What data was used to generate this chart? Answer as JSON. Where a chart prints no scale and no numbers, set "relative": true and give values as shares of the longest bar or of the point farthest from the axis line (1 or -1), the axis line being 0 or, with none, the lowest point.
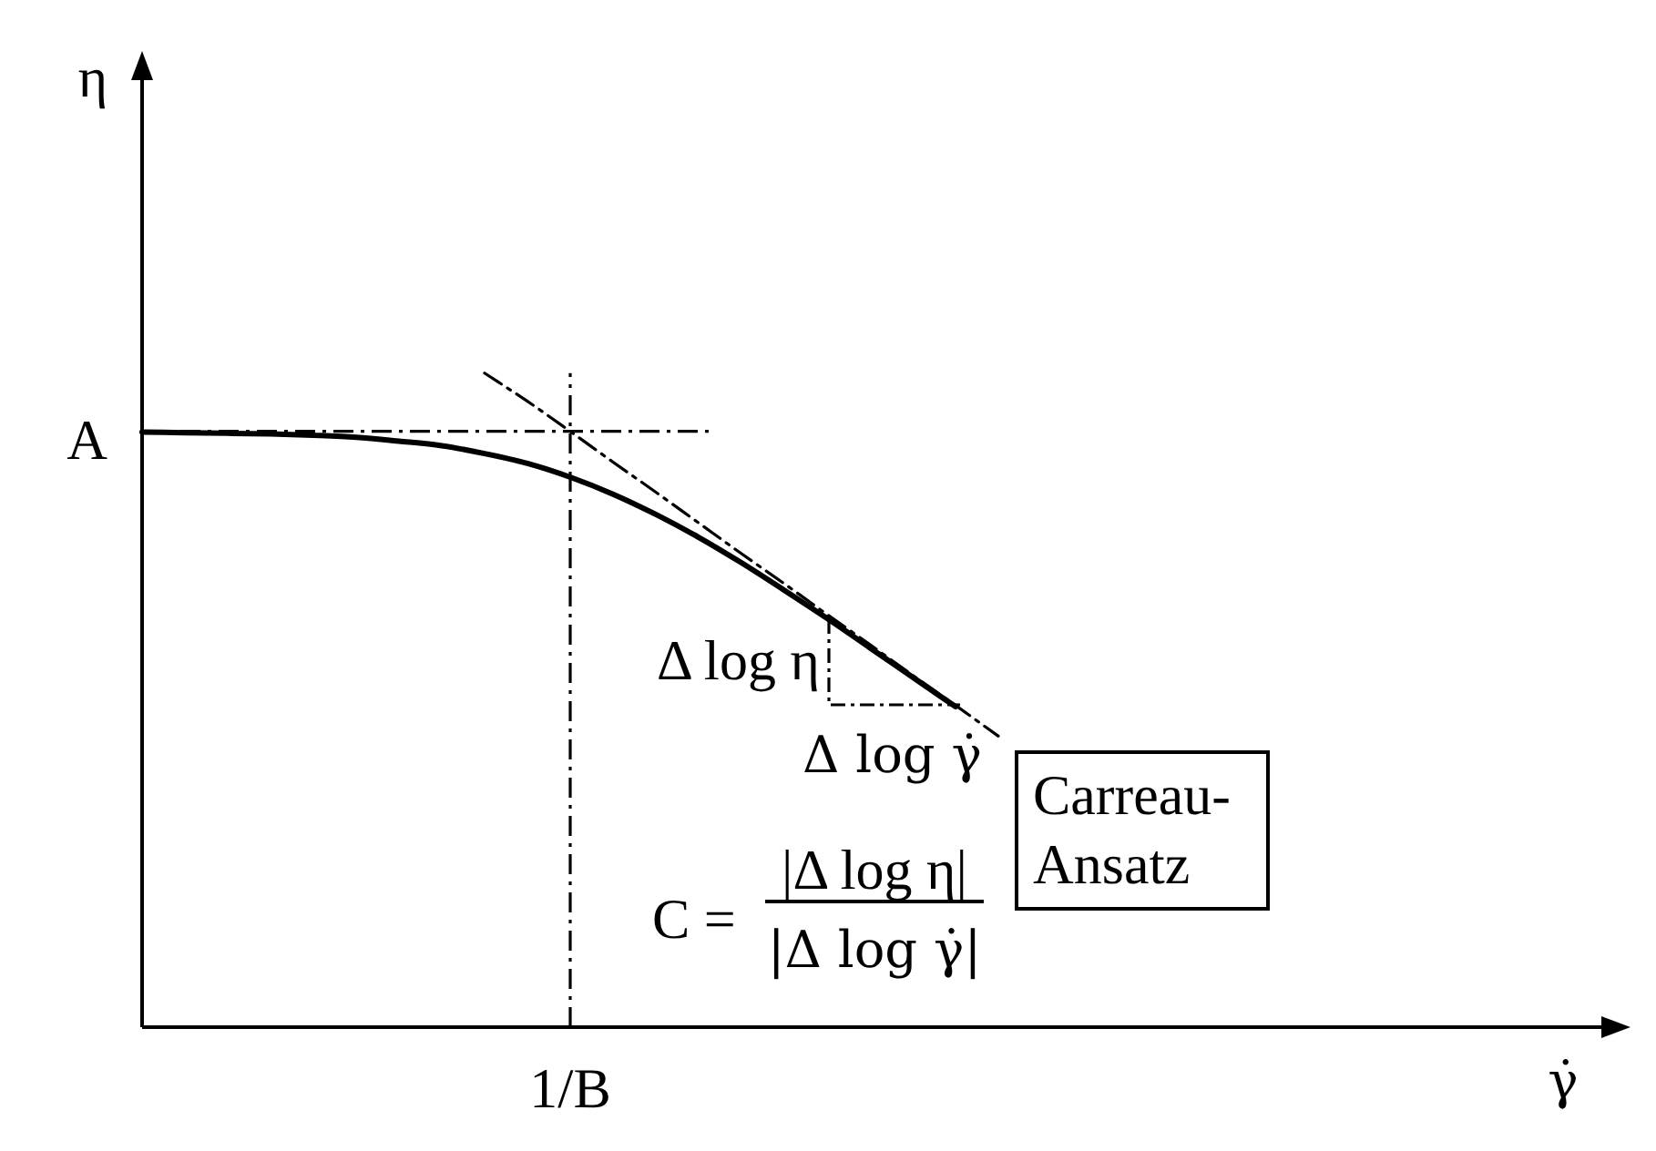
{
  "chart_data": {
    "type": "line",
    "relative": true,
    "xlabel": "γ̇",
    "ylabel": "η",
    "categories": [
      null,
      null,
      null,
      null,
      null,
      null,
      null,
      null,
      null,
      null,
      null,
      null,
      null,
      null,
      null,
      null,
      null,
      null,
      null,
      null,
      null,
      null,
      null,
      null,
      null,
      null,
      null,
      null,
      null,
      null,
      null,
      null,
      null,
      null,
      null
    ],
    "series": [
      {
        "color": "#000000",
        "values": [
          0.91,
          0.909,
          0.908,
          0.907,
          0.905,
          0.902,
          0.896,
          0.889,
          0.877,
          0.862,
          0.841,
          0.815,
          0.784,
          0.749,
          0.71,
          0.668,
          0.625,
          0.58,
          0.535,
          0.49,
          null,
          null,
          null,
          null,
          null,
          null,
          null,
          null,
          null,
          null,
          null,
          null,
          null,
          null,
          null
        ]
      },
      {
        "color": "#000000",
        "line_style": "dashed",
        "values": [
          null,
          null,
          null,
          null,
          null,
          null,
          null,
          null,
          1,
          0.957,
          0.911,
          0.864,
          0.818,
          0.771,
          0.724,
          0.678,
          0.631,
          0.585,
          0.538,
          0.492,
          0.445,
          null,
          null,
          null,
          null,
          null,
          null,
          null,
          null,
          null,
          null,
          null,
          null,
          null,
          null
        ]
      }
    ],
    "ref_lines": [
      {
        "axis": "x",
        "value": "1/B",
        "line_style": "dashed",
        "color": "#000000"
      },
      {
        "axis": "y",
        "value": 0.911,
        "label": "A",
        "line_style": "dashed",
        "color": "#000000"
      }
    ],
    "annotations": [
      "Δ log η",
      "Δ log γ̇",
      "Carreau-Ansatz",
      "C =",
      "|Δ log η|",
      "|Δ log γ̇|"
    ]
  }
}
